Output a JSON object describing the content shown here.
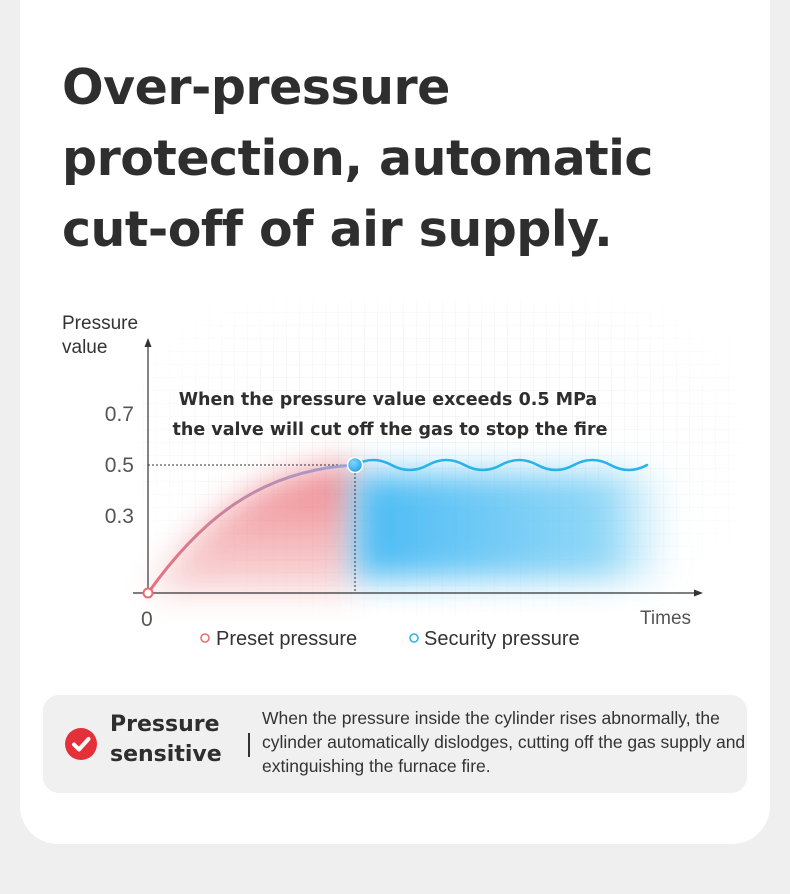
{
  "title": "Over-pressure protection, automatic cut-off of air supply.",
  "chart_data": {
    "type": "line",
    "ylabel_line1": "Pressure",
    "ylabel_line2": "value",
    "xlabel": "Times",
    "origin_label": "0",
    "y_ticks": [
      "0.7",
      "0.5",
      "0.3"
    ],
    "annotation_line1": "When the pressure value exceeds 0.5 MPa",
    "annotation_line2": "the valve will cut off the gas to stop the fire",
    "threshold": 0.5,
    "ylim": [
      0,
      0.85
    ],
    "series": [
      {
        "name": "Preset pressure",
        "color": "#e96b72",
        "x": [
          0,
          1,
          2,
          3,
          4
        ],
        "y": [
          0,
          0.25,
          0.38,
          0.46,
          0.5
        ]
      },
      {
        "name": "Security pressure",
        "color": "#27b3ea",
        "x": [
          4,
          5,
          6,
          7,
          8,
          9
        ],
        "y": [
          0.5,
          0.5,
          0.5,
          0.5,
          0.5,
          0.5
        ]
      }
    ],
    "grid": true
  },
  "note": {
    "title": "Pressure sensitive",
    "text": "When the pressure inside the cylinder rises abnormally, the cylinder automatically dislodges, cutting off the gas supply and extinguishing the furnace fire."
  },
  "icons": {
    "note_icon": "check-circle-icon"
  },
  "colors": {
    "accent_red": "#e4303a",
    "preset": "#e96b72",
    "security": "#27b3ea"
  }
}
